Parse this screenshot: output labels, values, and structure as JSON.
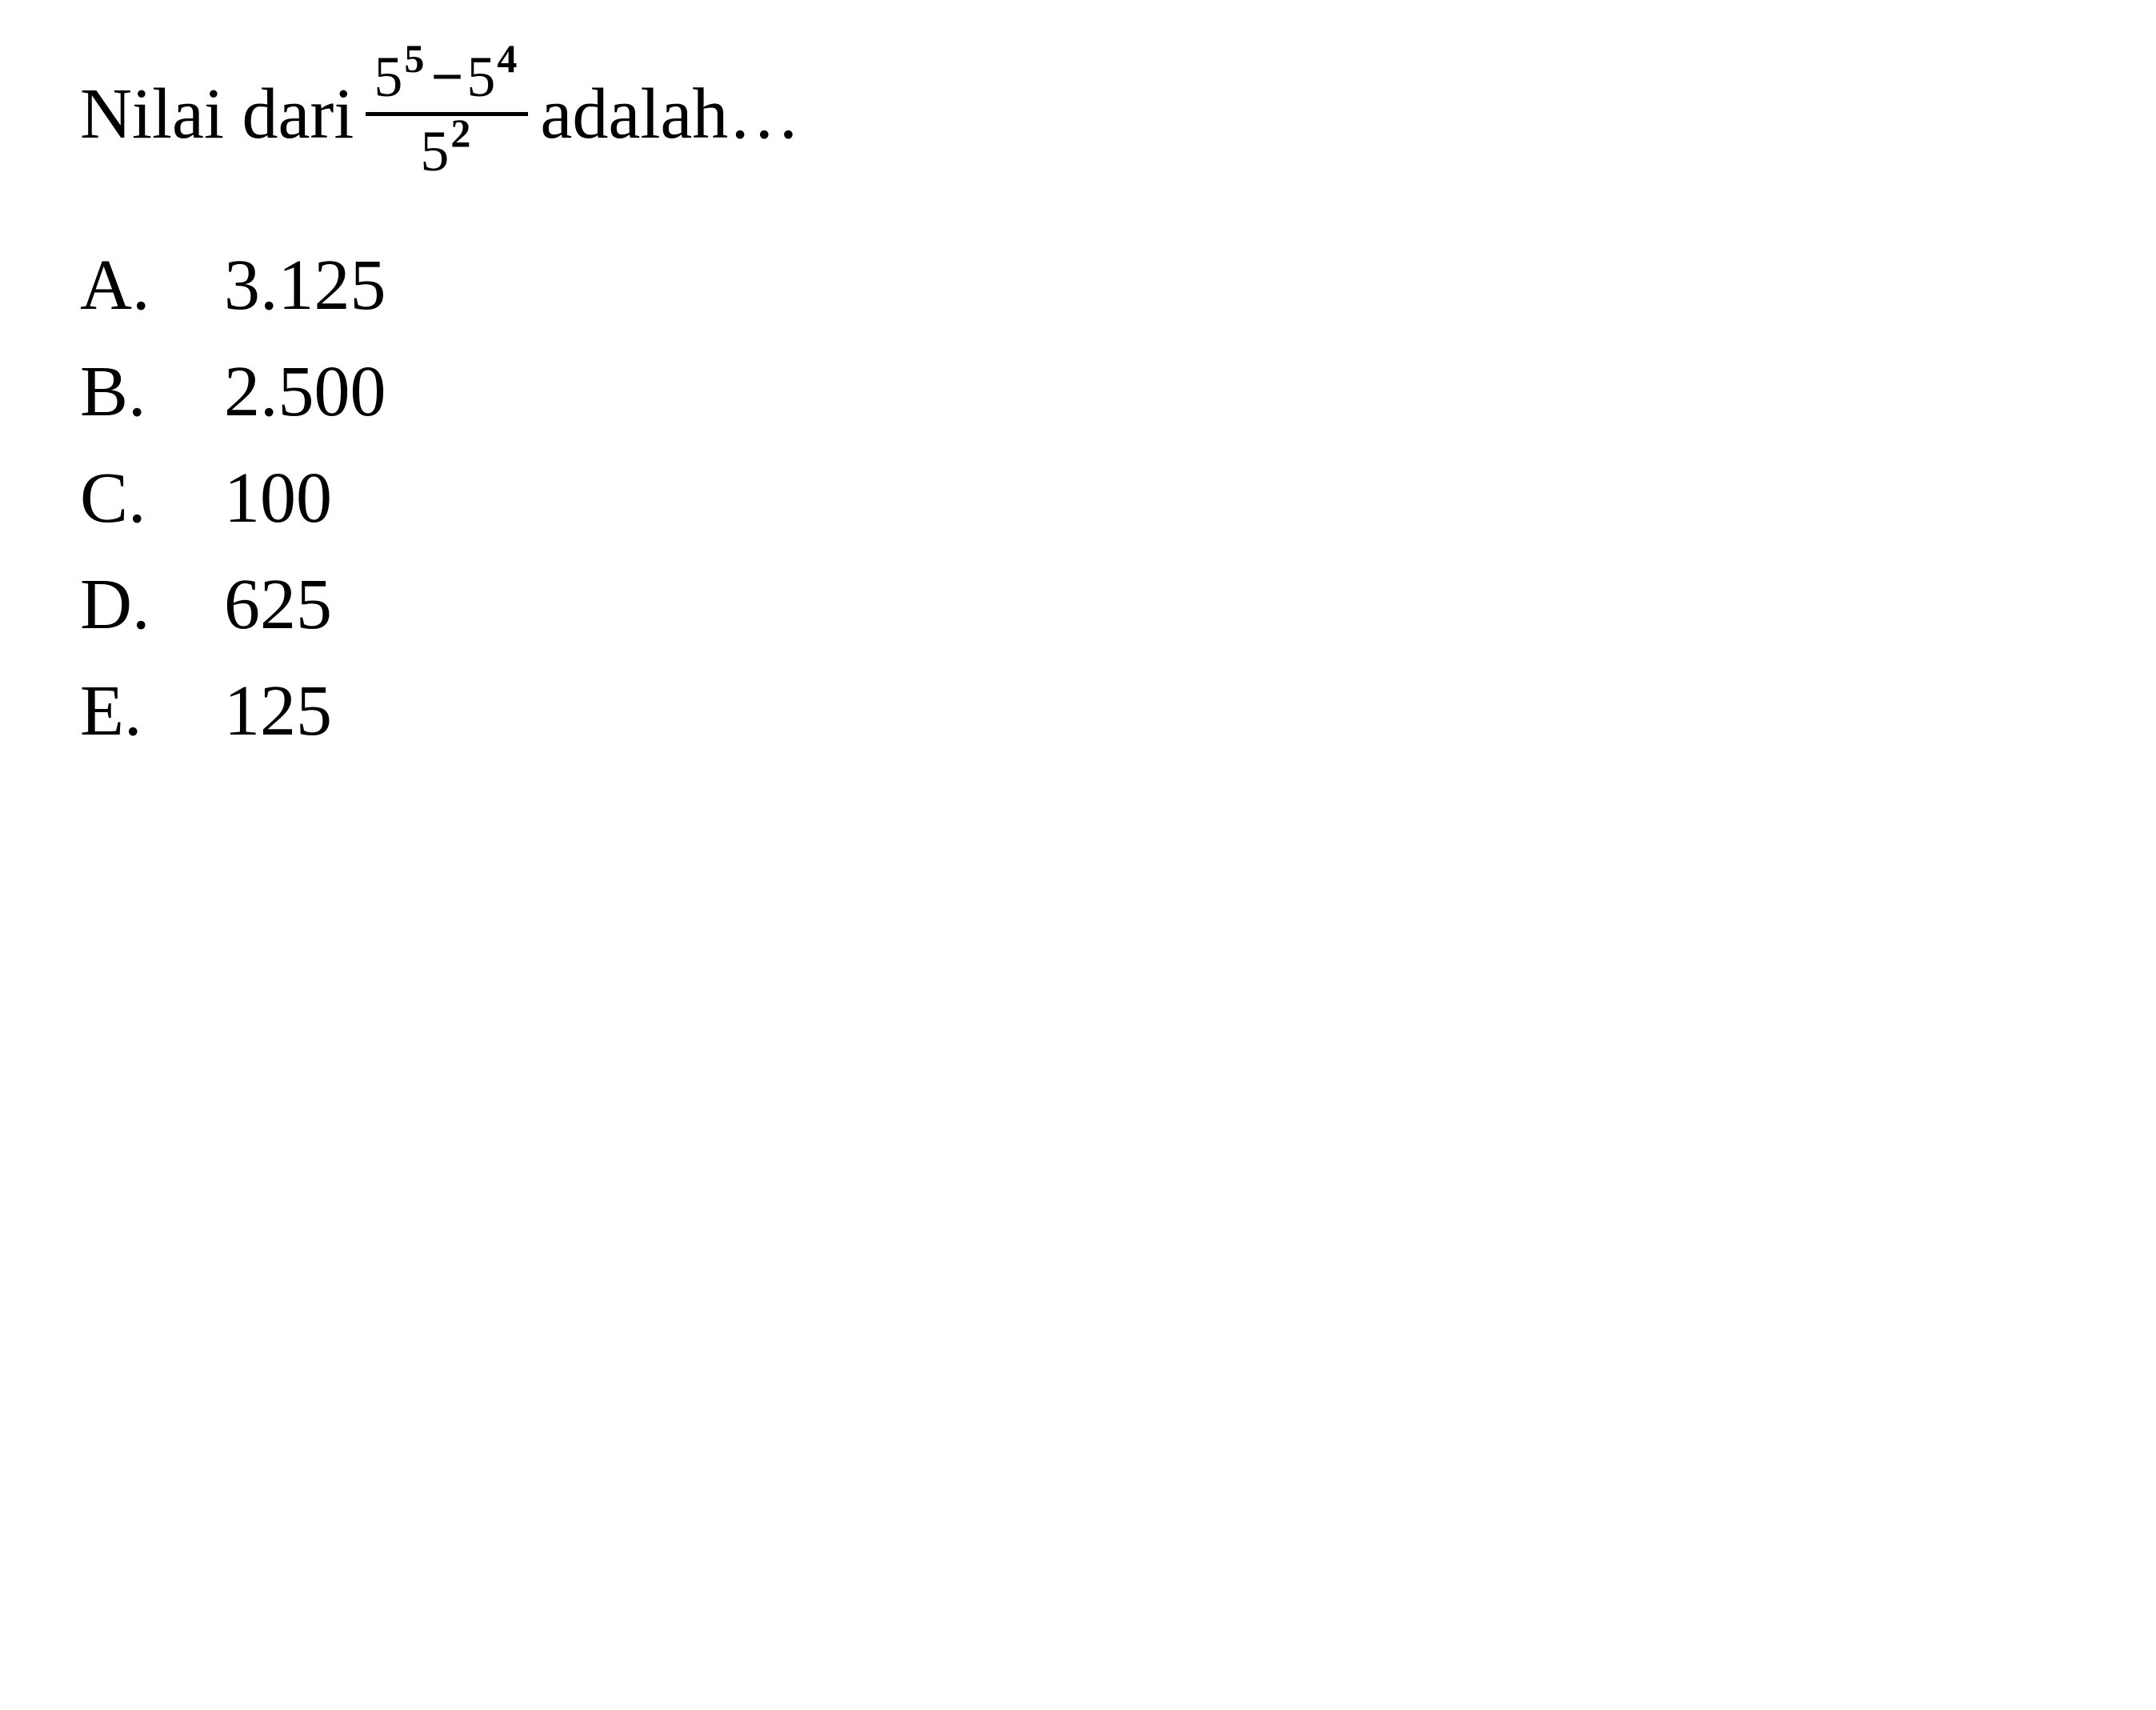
{
  "question": {
    "text_before": "Nilai dari",
    "text_after": "adalah…",
    "fraction": {
      "numerator": {
        "term1_base": "5",
        "term1_exp": "5",
        "operator": "−",
        "term2_base": "5",
        "term2_exp": "4"
      },
      "denominator": {
        "base": "5",
        "exp": "2"
      }
    }
  },
  "options": [
    {
      "letter": "A.",
      "value": "3.125"
    },
    {
      "letter": "B.",
      "value": "2.500"
    },
    {
      "letter": "C.",
      "value": "100"
    },
    {
      "letter": "D.",
      "value": "625"
    },
    {
      "letter": "E.",
      "value": "125"
    }
  ],
  "styling": {
    "background_color": "#ffffff",
    "text_color": "#000000",
    "font_family": "Georgia, Times New Roman, serif",
    "question_fontsize": 90,
    "option_fontsize": 90,
    "fraction_fontsize": 72,
    "superscript_fontsize": 50,
    "fraction_bar_thickness": 5
  }
}
